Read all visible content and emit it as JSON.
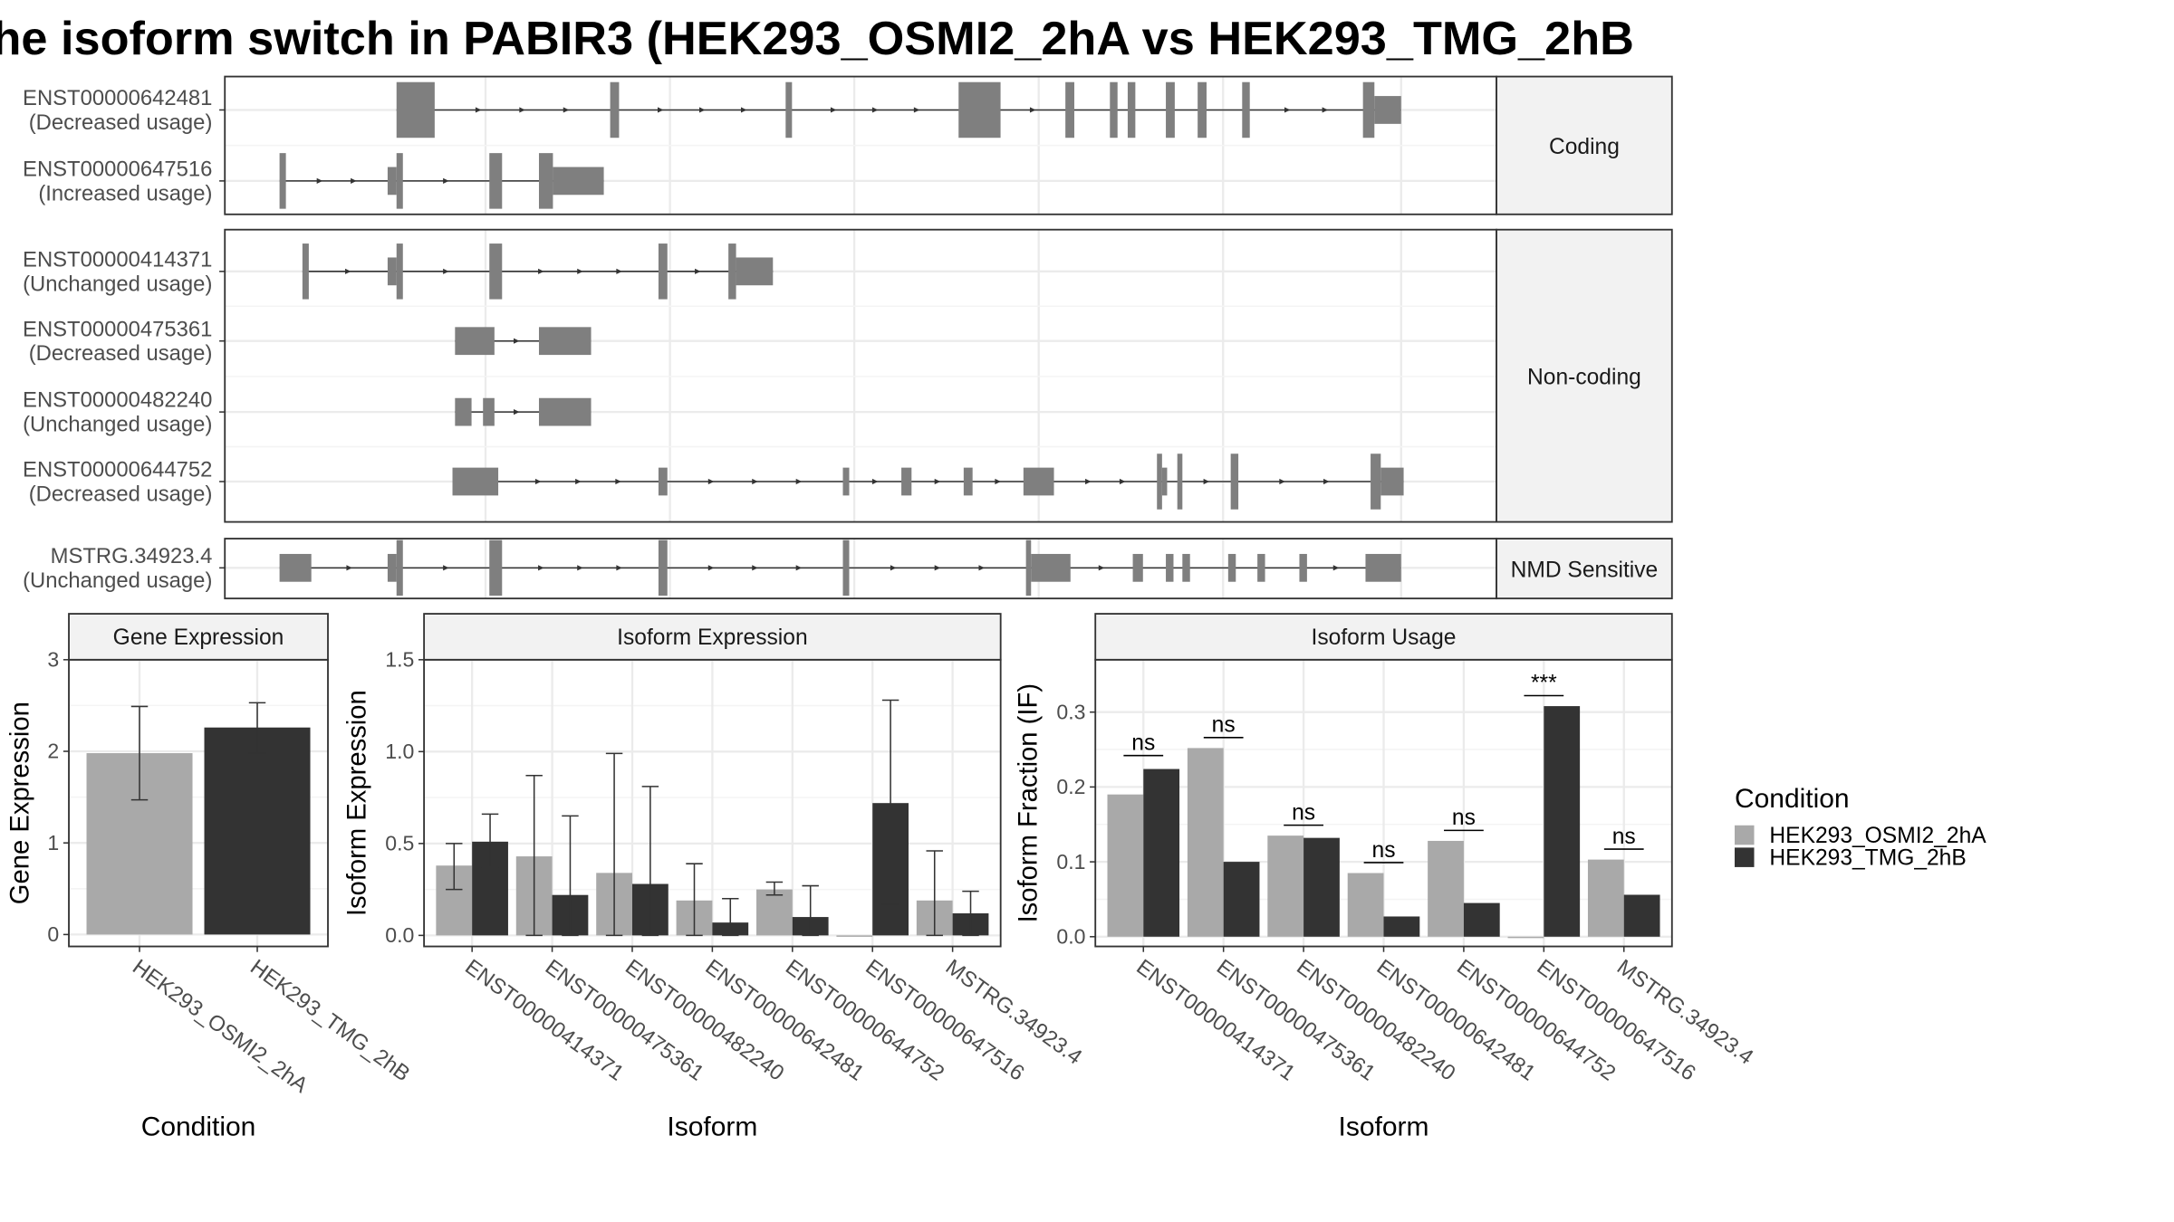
{
  "title": "he isoform switch in PABIR3 (HEK293_OSMI2_2hA vs HEK293_TMG_2hB",
  "colors": {
    "exon": "#7f7f7f",
    "cond1": "#a9a9a9",
    "cond2": "#333333",
    "grid": "#ebebeb",
    "strip": "#f2f2f2",
    "frame": "#333333"
  },
  "structure": {
    "x_range": [
      0,
      100
    ],
    "facets": [
      {
        "label": "Coding",
        "transcripts": [
          {
            "id": "ENST00000642481",
            "usage": "(Decreased usage)",
            "exons": [
              [
                13.5,
                16.5,
                "full"
              ],
              [
                30.3,
                31,
                "full"
              ],
              [
                44.1,
                44.6,
                "full"
              ],
              [
                57.7,
                61,
                "full"
              ],
              [
                66.1,
                66.8,
                "full"
              ],
              [
                69.6,
                70.2,
                "full"
              ],
              [
                71,
                71.6,
                "full"
              ],
              [
                74,
                74.7,
                "full"
              ],
              [
                76.5,
                77.2,
                "full"
              ],
              [
                80,
                80.6,
                "full"
              ],
              [
                89.5,
                90.4,
                "full"
              ],
              [
                90.4,
                92.5,
                "mid"
              ]
            ]
          },
          {
            "id": "ENST00000647516",
            "usage": "(Increased usage)",
            "exons": [
              [
                4.3,
                4.8,
                "full"
              ],
              [
                12.8,
                13.5,
                "mid"
              ],
              [
                13.5,
                14,
                "full"
              ],
              [
                20.8,
                21.8,
                "full"
              ],
              [
                24.7,
                25.8,
                "full"
              ],
              [
                25.8,
                29.8,
                "mid"
              ]
            ]
          }
        ]
      },
      {
        "label": "Non-coding",
        "transcripts": [
          {
            "id": "ENST00000414371",
            "usage": "(Unchanged usage)",
            "exons": [
              [
                6.1,
                6.6,
                "full"
              ],
              [
                12.8,
                13.5,
                "mid"
              ],
              [
                13.5,
                14,
                "full"
              ],
              [
                20.8,
                21.8,
                "full"
              ],
              [
                34.1,
                34.8,
                "full"
              ],
              [
                39.6,
                40.2,
                "full"
              ],
              [
                40.2,
                43.1,
                "mid"
              ]
            ]
          },
          {
            "id": "ENST00000475361",
            "usage": "(Decreased usage)",
            "exons": [
              [
                18.1,
                21.2,
                "mid"
              ],
              [
                24.7,
                28.8,
                "mid"
              ]
            ]
          },
          {
            "id": "ENST00000482240",
            "usage": "(Unchanged usage)",
            "exons": [
              [
                18.1,
                19.4,
                "mid"
              ],
              [
                20.3,
                21.2,
                "mid"
              ],
              [
                24.7,
                28.8,
                "mid"
              ]
            ]
          },
          {
            "id": "ENST00000644752",
            "usage": "(Decreased usage)",
            "exons": [
              [
                17.9,
                21.5,
                "mid"
              ],
              [
                34.1,
                34.8,
                "mid"
              ],
              [
                48.6,
                49.1,
                "mid"
              ],
              [
                53.2,
                54,
                "mid"
              ],
              [
                58.1,
                58.8,
                "mid"
              ],
              [
                62.8,
                65.2,
                "mid"
              ],
              [
                73.3,
                73.7,
                "full"
              ],
              [
                73.7,
                74.1,
                "mid"
              ],
              [
                74.9,
                75.3,
                "full"
              ],
              [
                79.1,
                79.7,
                "full"
              ],
              [
                90.1,
                90.9,
                "full"
              ],
              [
                90.9,
                92.7,
                "mid"
              ]
            ]
          }
        ]
      },
      {
        "label": "NMD Sensitive",
        "transcripts": [
          {
            "id": "MSTRG.34923.4",
            "usage": "(Unchanged usage)",
            "exons": [
              [
                4.3,
                6.8,
                "mid"
              ],
              [
                12.8,
                13.5,
                "mid"
              ],
              [
                13.5,
                14,
                "full"
              ],
              [
                20.8,
                21.8,
                "full"
              ],
              [
                34.1,
                34.8,
                "full"
              ],
              [
                48.6,
                49.1,
                "full"
              ],
              [
                63,
                63.4,
                "full"
              ],
              [
                63.4,
                66.5,
                "mid"
              ],
              [
                71.4,
                72.2,
                "mid"
              ],
              [
                74,
                74.6,
                "mid"
              ],
              [
                75.3,
                75.9,
                "mid"
              ],
              [
                78.9,
                79.5,
                "mid"
              ],
              [
                81.2,
                81.8,
                "mid"
              ],
              [
                84.5,
                85.1,
                "mid"
              ],
              [
                89.7,
                92.5,
                "mid"
              ]
            ]
          }
        ]
      }
    ]
  },
  "chart_data": [
    {
      "type": "bar",
      "title": "Gene Expression",
      "xlabel": "Condition",
      "ylabel": "Gene Expression",
      "categories": [
        "HEK293_OSMI2_2hA",
        "HEK293_TMG_2hB"
      ],
      "values": [
        1.98,
        2.26
      ],
      "error_low": [
        1.47,
        1.98
      ],
      "error_high": [
        2.49,
        2.53
      ],
      "ylim": [
        -0.13,
        3.0
      ],
      "yticks": [
        0,
        1,
        2,
        3
      ],
      "tick_labels": [
        "0",
        "1",
        "2",
        "3"
      ],
      "grid": true
    },
    {
      "type": "bar",
      "title": "Isoform Expression",
      "xlabel": "Isoform",
      "ylabel": "Isoform Expression",
      "categories": [
        "ENST00000414371",
        "ENST00000475361",
        "ENST00000482240",
        "ENST00000642481",
        "ENST00000644752",
        "ENST00000647516",
        "MSTRG.34923.4"
      ],
      "series": [
        {
          "name": "HEK293_OSMI2_2hA",
          "values": [
            0.38,
            0.43,
            0.34,
            0.19,
            0.25,
            0.0,
            0.19
          ],
          "error_low": [
            0.25,
            0.0,
            0.0,
            0.0,
            0.22,
            0.0,
            0.0
          ],
          "error_high": [
            0.5,
            0.87,
            0.99,
            0.39,
            0.29,
            0.0,
            0.46
          ]
        },
        {
          "name": "HEK293_TMG_2hB",
          "values": [
            0.51,
            0.22,
            0.28,
            0.07,
            0.1,
            0.72,
            0.12
          ],
          "error_low": [
            0.37,
            0.0,
            0.0,
            0.0,
            0.0,
            0.17,
            0.0
          ],
          "error_high": [
            0.66,
            0.65,
            0.81,
            0.2,
            0.27,
            1.28,
            0.24
          ]
        }
      ],
      "ylim": [
        -0.06,
        1.5
      ],
      "yticks": [
        0,
        0.5,
        1.0,
        1.5
      ],
      "tick_labels": [
        "0.0",
        "0.5",
        "1.0",
        "1.5"
      ],
      "grid": true
    },
    {
      "type": "bar",
      "title": "Isoform Usage",
      "xlabel": "Isoform",
      "ylabel": "Isoform Fraction (IF)",
      "categories": [
        "ENST00000414371",
        "ENST00000475361",
        "ENST00000482240",
        "ENST00000642481",
        "ENST00000644752",
        "ENST00000647516",
        "MSTRG.34923.4"
      ],
      "series": [
        {
          "name": "HEK293_OSMI2_2hA",
          "values": [
            0.19,
            0.252,
            0.135,
            0.085,
            0.128,
            0.0,
            0.103
          ]
        },
        {
          "name": "HEK293_TMG_2hB",
          "values": [
            0.224,
            0.1,
            0.132,
            0.027,
            0.045,
            0.308,
            0.056
          ]
        }
      ],
      "significance": [
        "ns",
        "ns",
        "ns",
        "ns",
        "ns",
        "***",
        "ns"
      ],
      "significance_y": [
        0.242,
        0.266,
        0.149,
        0.099,
        0.142,
        0.322,
        0.117
      ],
      "ylim": [
        -0.013,
        0.37
      ],
      "yticks": [
        0,
        0.1,
        0.2,
        0.3
      ],
      "tick_labels": [
        "0.0",
        "0.1",
        "0.2",
        "0.3"
      ],
      "grid": true
    }
  ],
  "legend": {
    "title": "Condition",
    "entries": [
      "HEK293_OSMI2_2hA",
      "HEK293_TMG_2hB"
    ],
    "position": "right"
  }
}
